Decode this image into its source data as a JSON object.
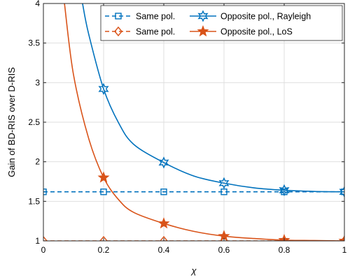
{
  "chart_data": {
    "type": "line",
    "xlabel": "χ",
    "ylabel": "Gain of BD-RIS over D-RIS",
    "xlim": [
      0,
      1
    ],
    "ylim": [
      1,
      4
    ],
    "xticks": [
      0,
      0.2,
      0.4,
      0.6,
      0.8,
      1
    ],
    "yticks": [
      1,
      1.5,
      2,
      2.5,
      3,
      3.5,
      4
    ],
    "xtick_labels": [
      "0",
      "0.2",
      "0.4",
      "0.6",
      "0.8",
      "1"
    ],
    "ytick_labels": [
      "1",
      "1.5",
      "2",
      "2.5",
      "3",
      "3.5",
      "4"
    ],
    "grid": true,
    "legend_position": "top-right",
    "series": [
      {
        "name": "Same pol.",
        "color": "#0072BD",
        "line": "dashed",
        "marker": "square",
        "x": [
          0,
          0.2,
          0.4,
          0.6,
          0.8,
          1
        ],
        "y": [
          1.62,
          1.62,
          1.62,
          1.62,
          1.62,
          1.62
        ]
      },
      {
        "name": "Same pol.",
        "color": "#D95319",
        "line": "dashed",
        "marker": "diamond",
        "x": [
          0,
          0.2,
          0.4,
          0.6,
          0.8,
          1
        ],
        "y": [
          1,
          1,
          1,
          1,
          1,
          1
        ]
      },
      {
        "name": "Opposite pol., Rayleigh",
        "color": "#0072BD",
        "line": "solid",
        "marker": "hexagram",
        "x": [
          0.13,
          0.15,
          0.2,
          0.25,
          0.3,
          0.4,
          0.5,
          0.6,
          0.7,
          0.8,
          0.9,
          1.0
        ],
        "y": [
          4.0,
          3.62,
          2.92,
          2.49,
          2.22,
          1.99,
          1.82,
          1.73,
          1.67,
          1.64,
          1.625,
          1.62
        ],
        "marker_x": [
          0.2,
          0.4,
          0.6,
          0.8,
          1.0
        ],
        "marker_y": [
          2.92,
          1.99,
          1.73,
          1.64,
          1.62
        ]
      },
      {
        "name": "Opposite pol., LoS",
        "color": "#D95319",
        "line": "solid",
        "marker": "pentagram",
        "x": [
          0.07,
          0.1,
          0.15,
          0.2,
          0.25,
          0.3,
          0.4,
          0.5,
          0.6,
          0.7,
          0.8,
          0.9,
          1.0
        ],
        "y": [
          4.0,
          3.1,
          2.3,
          1.8,
          1.52,
          1.36,
          1.22,
          1.12,
          1.06,
          1.03,
          1.01,
          1.005,
          1.0
        ],
        "marker_x": [
          0.2,
          0.4,
          0.6,
          0.8,
          1.0
        ],
        "marker_y": [
          1.8,
          1.22,
          1.06,
          1.01,
          1.0
        ]
      }
    ]
  }
}
